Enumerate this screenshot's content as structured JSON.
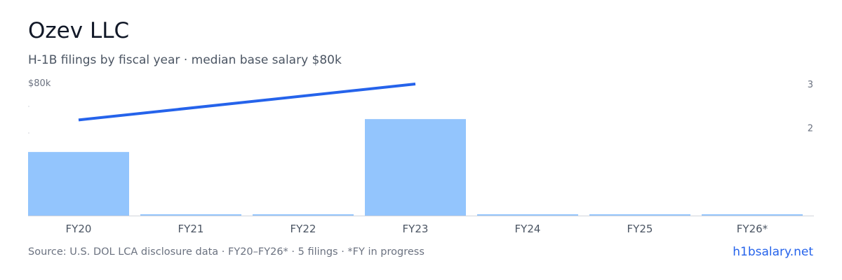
{
  "header": {
    "title": "Ozev LLC",
    "subtitle": "H-1B filings by fiscal year · median base salary $80k"
  },
  "chart_data": {
    "type": "bar",
    "categories": [
      "FY20",
      "FY21",
      "FY22",
      "FY23",
      "FY24",
      "FY25",
      "FY26*"
    ],
    "series": [
      {
        "values": [
          1.45,
          0.03,
          0.03,
          2.2,
          0.03,
          0.03,
          0.03
        ],
        "color": "#93c5fd"
      },
      {
        "type": "line",
        "points": [
          {
            "x": "FY20",
            "y": 2.18
          },
          {
            "x": "FY23",
            "y": 3.0
          }
        ],
        "color": "#2563eb"
      }
    ],
    "y_right_ticks": [
      "3",
      "2"
    ],
    "y_left_label": "$80k",
    "ylim": [
      0,
      3
    ],
    "grid": false
  },
  "footer": {
    "source": "Source: U.S. DOL LCA disclosure data · FY20–FY26* · 5 filings · *FY in progress",
    "brand": "h1bsalary.net"
  }
}
